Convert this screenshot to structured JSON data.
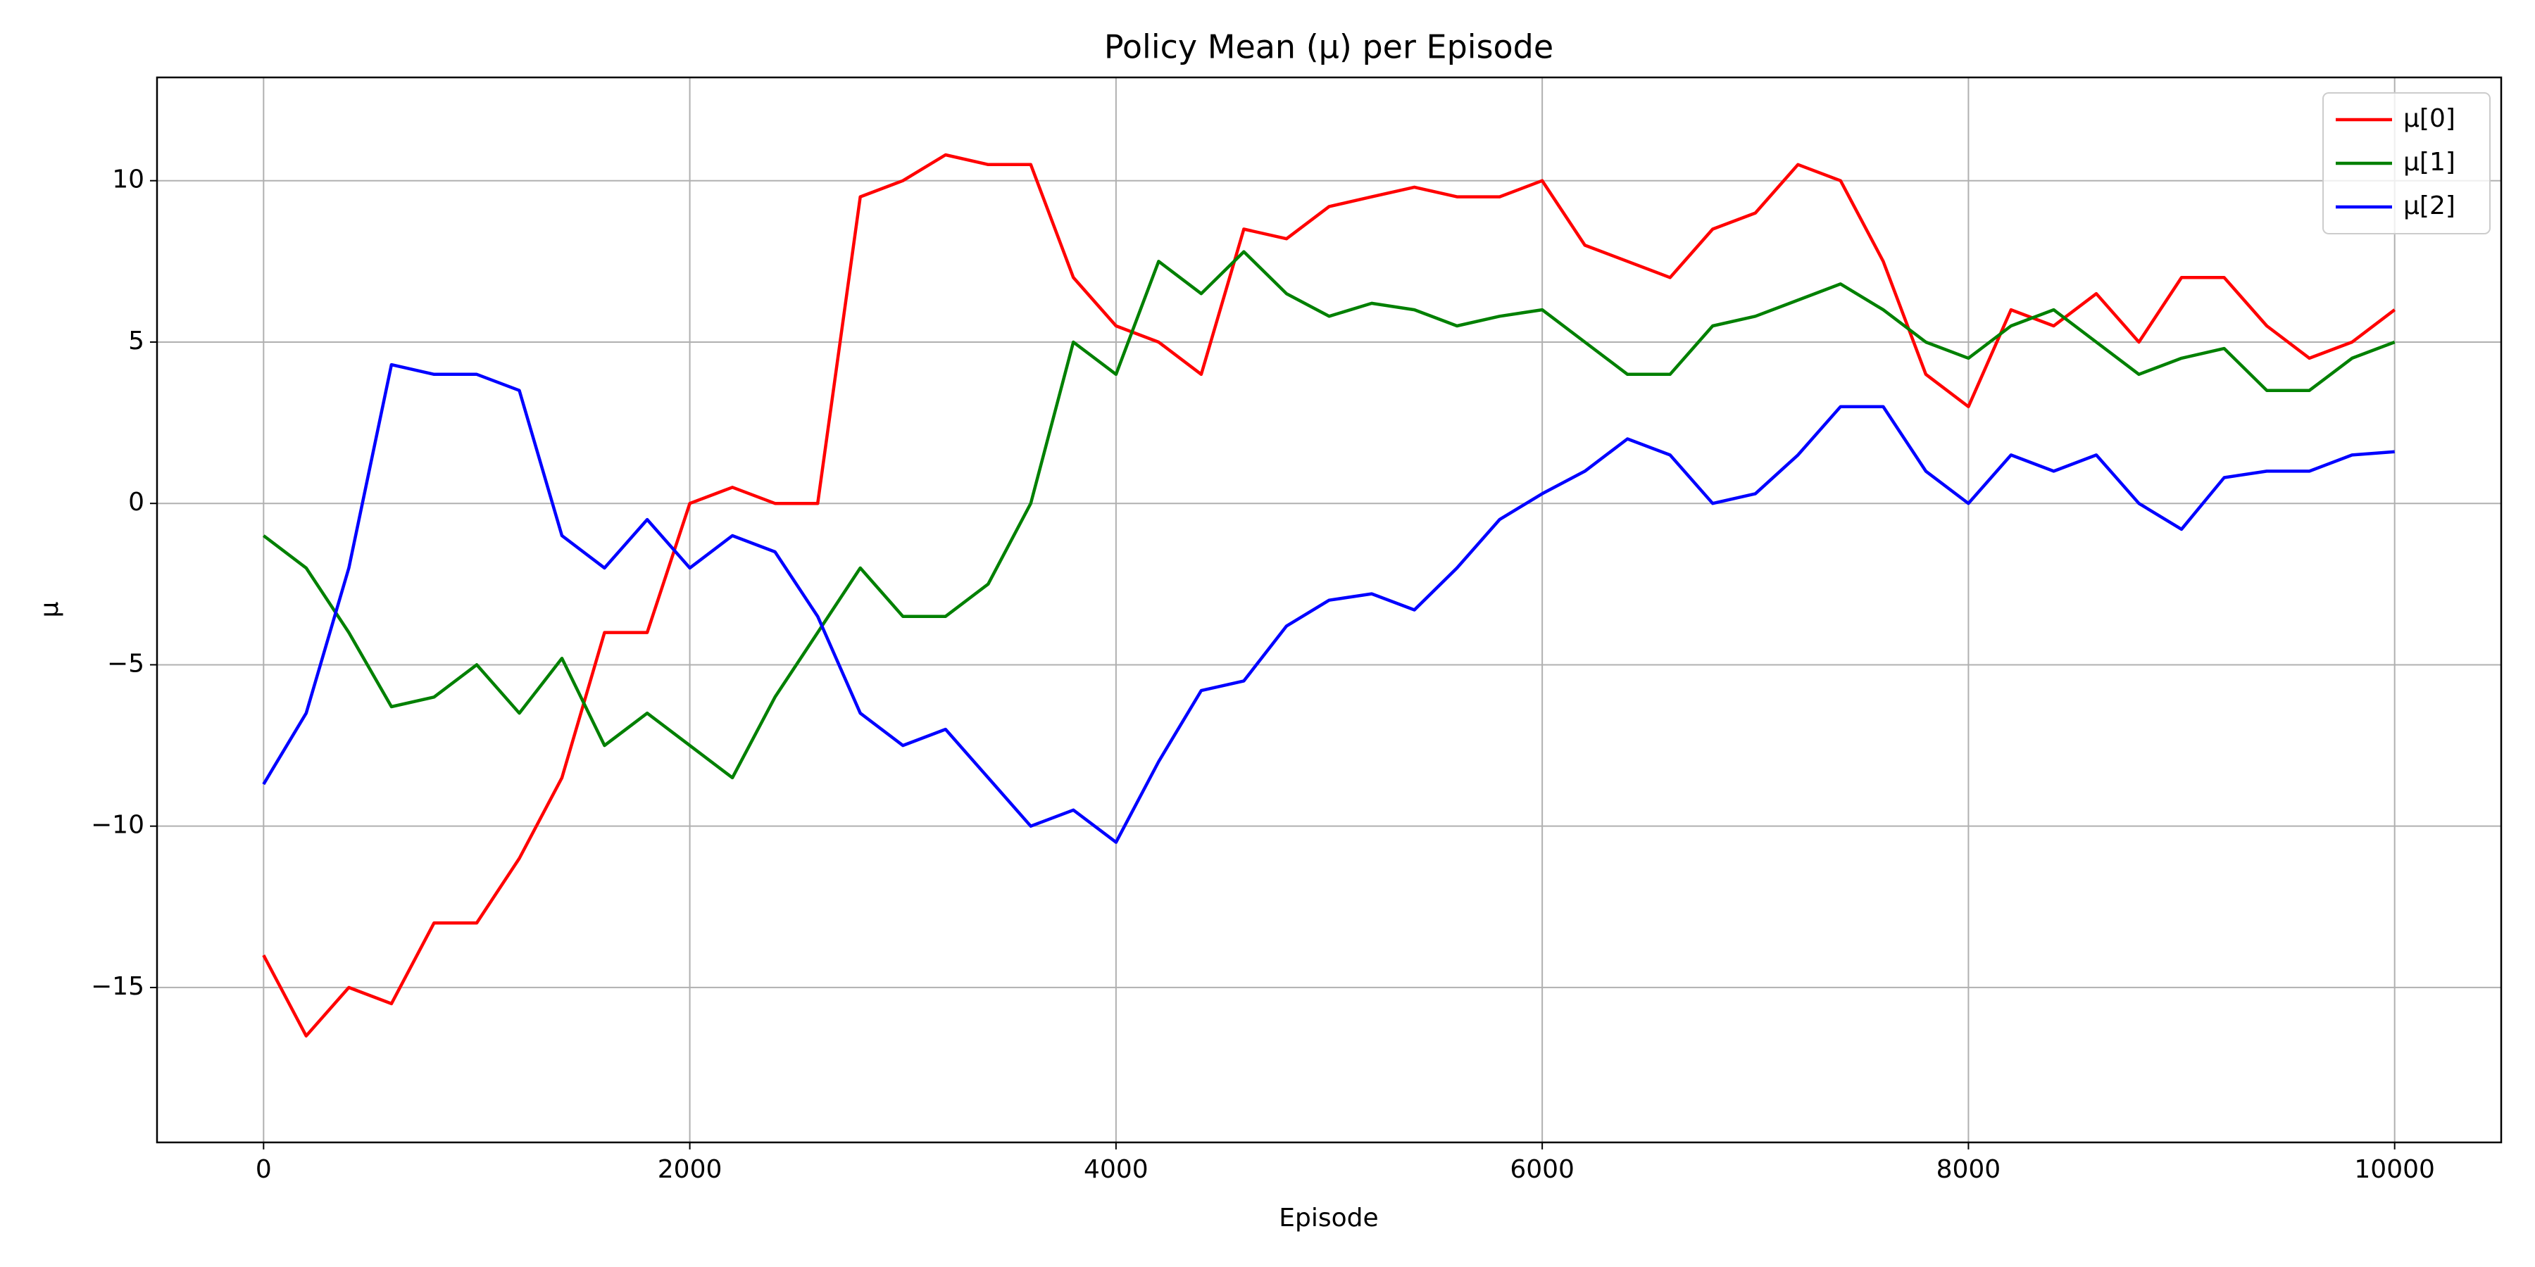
{
  "chart_data": {
    "type": "line",
    "title": "Policy Mean (μ) per Episode",
    "x_label": "Episode",
    "y_label": "μ",
    "x": [
      0,
      200,
      400,
      600,
      800,
      1000,
      1200,
      1400,
      1600,
      1800,
      2000,
      2200,
      2400,
      2600,
      2800,
      3000,
      3200,
      3400,
      3600,
      3800,
      4000,
      4200,
      4400,
      4600,
      4800,
      5000,
      5200,
      5400,
      5600,
      5800,
      6000,
      6200,
      6400,
      6600,
      6800,
      7000,
      7200,
      7400,
      7600,
      7800,
      8000,
      8200,
      8400,
      8600,
      8800,
      9000,
      9200,
      9400,
      9600,
      9800,
      10000
    ],
    "series": [
      {
        "name": "μ[0]",
        "color": "#ff0000",
        "values": [
          -14,
          -16.5,
          -15,
          -15.5,
          -13,
          -13,
          -11,
          -8.5,
          -4,
          -4,
          0,
          0.5,
          0,
          0,
          9.5,
          10,
          10.8,
          10.5,
          10.5,
          7,
          5.5,
          5,
          4,
          8.5,
          8.2,
          9.2,
          9.5,
          9.8,
          9.5,
          9.5,
          10,
          8,
          7.5,
          7,
          8.5,
          9,
          10.5,
          10,
          7.5,
          4,
          3,
          6,
          5.5,
          6.5,
          5,
          7,
          7,
          5.5,
          4.5,
          5,
          6
        ]
      },
      {
        "name": "μ[1]",
        "color": "#008000",
        "values": [
          -1,
          -2,
          -4,
          -6.3,
          -6,
          -5,
          -6.5,
          -4.8,
          -7.5,
          -6.5,
          -7.5,
          -8.5,
          -6,
          -4,
          -2,
          -3.5,
          -3.5,
          -2.5,
          0,
          5,
          4,
          7.5,
          6.5,
          7.8,
          6.5,
          5.8,
          6.2,
          6,
          5.5,
          5.8,
          6,
          5,
          4,
          4,
          5.5,
          5.8,
          6.3,
          6.8,
          6,
          5,
          4.5,
          5.5,
          6,
          5,
          4,
          4.5,
          4.8,
          3.5,
          3.5,
          4.5,
          5
        ]
      },
      {
        "name": "μ[2]",
        "color": "#0000ff",
        "values": [
          -8.7,
          -6.5,
          -2,
          4.3,
          4,
          4,
          3.5,
          -1,
          -2,
          -0.5,
          -2,
          -1,
          -1.5,
          -3.5,
          -6.5,
          -7.5,
          -7,
          -8.5,
          -10,
          -9.5,
          -10.5,
          -8,
          -5.8,
          -5.5,
          -3.8,
          -3,
          -2.8,
          -3.3,
          -2,
          -0.5,
          0.3,
          1,
          2,
          1.5,
          0,
          0.3,
          1.5,
          3,
          3,
          1,
          0,
          1.5,
          1,
          1.5,
          0,
          -0.8,
          0.8,
          1,
          1,
          1.5,
          1.6
        ]
      }
    ],
    "xlim": [
      -500,
      10500
    ],
    "ylim": [
      -19.8,
      13.2
    ],
    "xticks": [
      0,
      2000,
      4000,
      6000,
      8000,
      10000
    ],
    "yticks": [
      {
        "value": -15,
        "label": "−15"
      },
      {
        "value": -10,
        "label": "−10"
      },
      {
        "value": -5,
        "label": "−5"
      },
      0,
      5,
      10
    ],
    "grid": true,
    "legend": "upper right"
  }
}
